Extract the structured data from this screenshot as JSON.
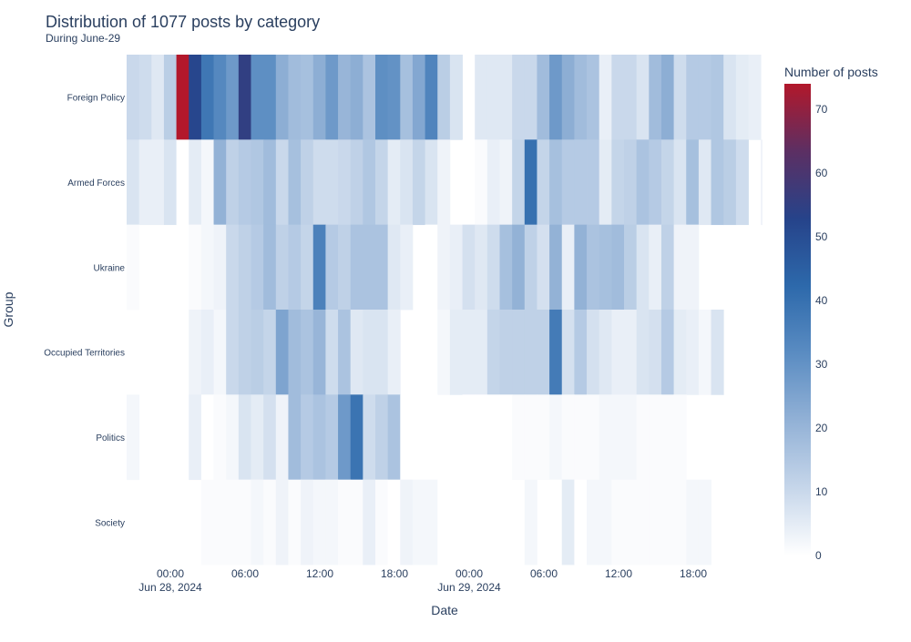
{
  "chart_data": {
    "type": "heatmap",
    "title": "Distribution of 1077 posts by category",
    "subtitle": "During June-29",
    "xlabel": "Date",
    "ylabel": "Group",
    "colorbar_title": "Number of posts",
    "colorbar_ticks": [
      "0",
      "10",
      "20",
      "30",
      "40",
      "50",
      "60",
      "70"
    ],
    "color_range": [
      0,
      74
    ],
    "colorscale": [
      "#ffffff",
      "#c6d6ea",
      "#92b1d6",
      "#5a8cc2",
      "#2d69ab",
      "#26438a",
      "#5c2f63",
      "#b2182b"
    ],
    "x_tick_labels": [
      {
        "time": "00:00",
        "date": "Jun 28, 2024"
      },
      {
        "time": "06:00",
        "date": ""
      },
      {
        "time": "12:00",
        "date": ""
      },
      {
        "time": "18:00",
        "date": ""
      },
      {
        "time": "00:00",
        "date": "Jun 29, 2024"
      },
      {
        "time": "06:00",
        "date": ""
      },
      {
        "time": "12:00",
        "date": ""
      },
      {
        "time": "18:00",
        "date": ""
      }
    ],
    "x_start": "2024-06-27 21:00",
    "x_interval_minutes": 60,
    "categories": [
      "Foreign Policy",
      "Armed Forces",
      "Ukraine",
      "Occupied Territories",
      "Politics",
      "Society"
    ],
    "z": [
      [
        10,
        9,
        6,
        13,
        74,
        52,
        38,
        33,
        28,
        55,
        31,
        31,
        22,
        18,
        17,
        22,
        28,
        20,
        22,
        16,
        31,
        30,
        17,
        24,
        34,
        13,
        7,
        null,
        6,
        6,
        6,
        10,
        10,
        18,
        28,
        22,
        18,
        16,
        4,
        10,
        10,
        7,
        18,
        22,
        9,
        14,
        14,
        15,
        7,
        5,
        4,
        null
      ],
      [
        7,
        4,
        4,
        7,
        0,
        5,
        2,
        21,
        12,
        14,
        15,
        18,
        10,
        17,
        12,
        9,
        9,
        10,
        12,
        15,
        11,
        5,
        7,
        11,
        7,
        3,
        null,
        0,
        1,
        4,
        3,
        11,
        40,
        11,
        17,
        14,
        14,
        14,
        5,
        11,
        12,
        16,
        14,
        11,
        7,
        17,
        6,
        15,
        13,
        9,
        null,
        3
      ],
      [
        1,
        null,
        null,
        null,
        null,
        1,
        2,
        3,
        10,
        12,
        14,
        18,
        12,
        14,
        11,
        35,
        14,
        12,
        16,
        16,
        16,
        6,
        4,
        null,
        0,
        3,
        4,
        8,
        6,
        9,
        17,
        21,
        12,
        8,
        21,
        4,
        21,
        16,
        17,
        18,
        13,
        7,
        4,
        12,
        3,
        3
      ],
      [
        null,
        null,
        null,
        null,
        null,
        3,
        4,
        2,
        10,
        12,
        13,
        11,
        25,
        18,
        16,
        20,
        9,
        16,
        6,
        7,
        7,
        4,
        null,
        null,
        null,
        2,
        5,
        5,
        5,
        11,
        12,
        12,
        12,
        12,
        37,
        8,
        14,
        8,
        6,
        4,
        4,
        7,
        8,
        14,
        5,
        4,
        2,
        7
      ],
      [
        2,
        null,
        null,
        null,
        null,
        4,
        0,
        1,
        2,
        7,
        5,
        8,
        3,
        18,
        14,
        16,
        14,
        28,
        39,
        9,
        12,
        16,
        0,
        0,
        0,
        null,
        null,
        0,
        0,
        0,
        0,
        1,
        1,
        1,
        2,
        1,
        1,
        1,
        2,
        2,
        2,
        1,
        1,
        1,
        1,
        null
      ],
      [
        null,
        null,
        null,
        null,
        null,
        null,
        1,
        1,
        1,
        1,
        2,
        1,
        3,
        1,
        3,
        2,
        2,
        1,
        1,
        4,
        1,
        0,
        3,
        2,
        2,
        0,
        null,
        null,
        null,
        null,
        null,
        null,
        2,
        null,
        0,
        5,
        0,
        2,
        2,
        1,
        1,
        1,
        1,
        1,
        1,
        2,
        2,
        null
      ]
    ]
  }
}
